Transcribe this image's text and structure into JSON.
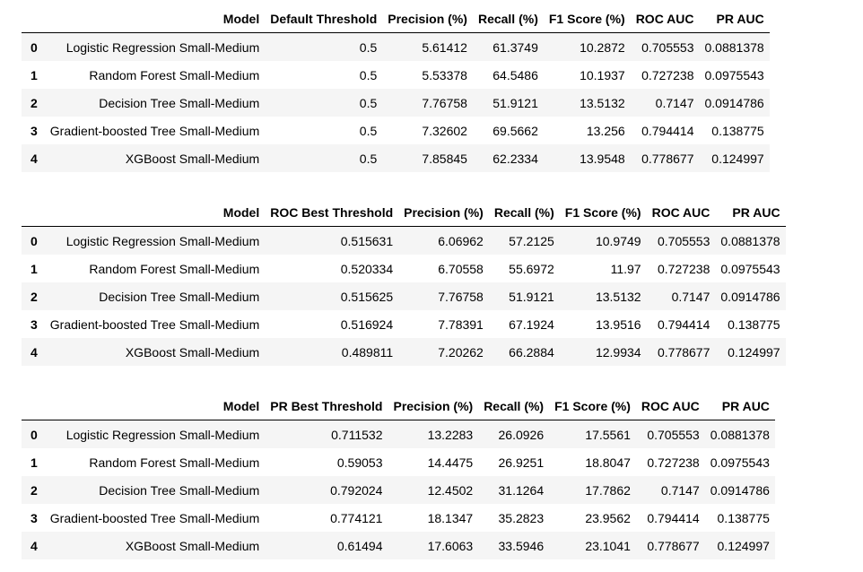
{
  "tables": [
    {
      "columns": [
        "Model",
        "Default Threshold",
        "Precision (%)",
        "Recall (%)",
        "F1 Score (%)",
        "ROC AUC",
        "PR AUC"
      ],
      "rows": [
        {
          "index": "0",
          "cells": [
            "Logistic Regression Small-Medium",
            "0.5",
            "5.61412",
            "61.3749",
            "10.2872",
            "0.705553",
            "0.0881378"
          ]
        },
        {
          "index": "1",
          "cells": [
            "Random Forest Small-Medium",
            "0.5",
            "5.53378",
            "64.5486",
            "10.1937",
            "0.727238",
            "0.0975543"
          ]
        },
        {
          "index": "2",
          "cells": [
            "Decision Tree Small-Medium",
            "0.5",
            "7.76758",
            "51.9121",
            "13.5132",
            "0.7147",
            "0.0914786"
          ]
        },
        {
          "index": "3",
          "cells": [
            "Gradient-boosted Tree Small-Medium",
            "0.5",
            "7.32602",
            "69.5662",
            "13.256",
            "0.794414",
            "0.138775"
          ]
        },
        {
          "index": "4",
          "cells": [
            "XGBoost Small-Medium",
            "0.5",
            "7.85845",
            "62.2334",
            "13.9548",
            "0.778677",
            "0.124997"
          ]
        }
      ]
    },
    {
      "columns": [
        "Model",
        "ROC Best Threshold",
        "Precision (%)",
        "Recall (%)",
        "F1 Score (%)",
        "ROC AUC",
        "PR AUC"
      ],
      "rows": [
        {
          "index": "0",
          "cells": [
            "Logistic Regression Small-Medium",
            "0.515631",
            "6.06962",
            "57.2125",
            "10.9749",
            "0.705553",
            "0.0881378"
          ]
        },
        {
          "index": "1",
          "cells": [
            "Random Forest Small-Medium",
            "0.520334",
            "6.70558",
            "55.6972",
            "11.97",
            "0.727238",
            "0.0975543"
          ]
        },
        {
          "index": "2",
          "cells": [
            "Decision Tree Small-Medium",
            "0.515625",
            "7.76758",
            "51.9121",
            "13.5132",
            "0.7147",
            "0.0914786"
          ]
        },
        {
          "index": "3",
          "cells": [
            "Gradient-boosted Tree Small-Medium",
            "0.516924",
            "7.78391",
            "67.1924",
            "13.9516",
            "0.794414",
            "0.138775"
          ]
        },
        {
          "index": "4",
          "cells": [
            "XGBoost Small-Medium",
            "0.489811",
            "7.20262",
            "66.2884",
            "12.9934",
            "0.778677",
            "0.124997"
          ]
        }
      ]
    },
    {
      "columns": [
        "Model",
        "PR Best Threshold",
        "Precision (%)",
        "Recall (%)",
        "F1 Score (%)",
        "ROC AUC",
        "PR AUC"
      ],
      "rows": [
        {
          "index": "0",
          "cells": [
            "Logistic Regression Small-Medium",
            "0.711532",
            "13.2283",
            "26.0926",
            "17.5561",
            "0.705553",
            "0.0881378"
          ]
        },
        {
          "index": "1",
          "cells": [
            "Random Forest Small-Medium",
            "0.59053",
            "14.4475",
            "26.9251",
            "18.8047",
            "0.727238",
            "0.0975543"
          ]
        },
        {
          "index": "2",
          "cells": [
            "Decision Tree Small-Medium",
            "0.792024",
            "12.4502",
            "31.1264",
            "17.7862",
            "0.7147",
            "0.0914786"
          ]
        },
        {
          "index": "3",
          "cells": [
            "Gradient-boosted Tree Small-Medium",
            "0.774121",
            "18.1347",
            "35.2823",
            "23.9562",
            "0.794414",
            "0.138775"
          ]
        },
        {
          "index": "4",
          "cells": [
            "XGBoost Small-Medium",
            "0.61494",
            "17.6063",
            "33.5946",
            "23.1041",
            "0.778677",
            "0.124997"
          ]
        }
      ]
    }
  ]
}
